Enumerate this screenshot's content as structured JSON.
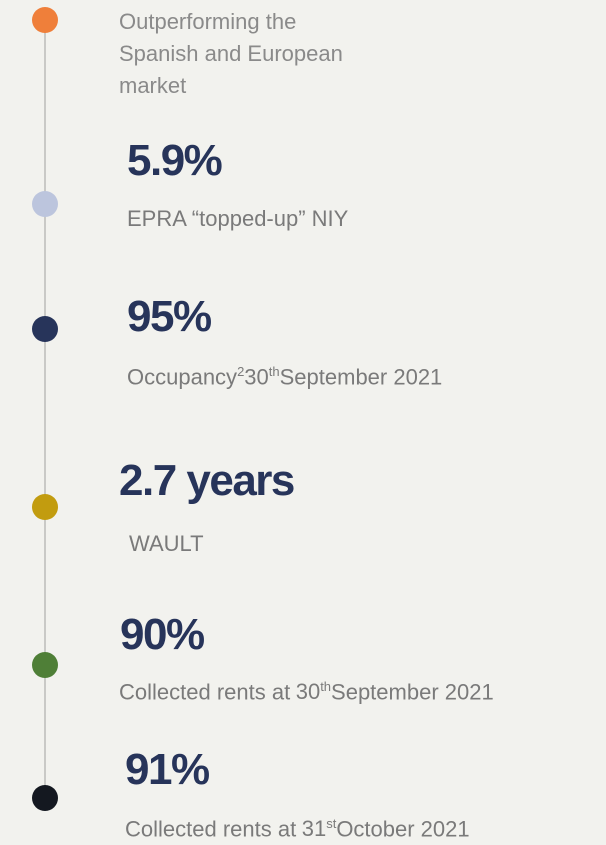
{
  "intro": {
    "lines": [
      "Outperforming the",
      "Spanish and European",
      "market"
    ],
    "dot_color": "#ef7f3a"
  },
  "items": [
    {
      "value": "5.9%",
      "dot_color": "#bcc5dd",
      "description": [
        {
          "text": "EPRA “topped-up” NIY"
        }
      ]
    },
    {
      "value": "95%",
      "dot_color": "#27345a",
      "description": [
        {
          "text": "Occupancy"
        },
        {
          "text": "2",
          "sup": true
        },
        {
          "text": "30"
        },
        {
          "text": "th",
          "sup": true
        },
        {
          "text": "September 2021"
        }
      ]
    },
    {
      "value": "2.7 years",
      "dot_color": "#c29c0f",
      "description": [
        {
          "text": "WAULT"
        }
      ]
    },
    {
      "value": "90%",
      "dot_color": "#4f7f37",
      "description": [
        {
          "text": "Collected rents at"
        },
        {
          "text": "30"
        },
        {
          "text": "th",
          "sup": true
        },
        {
          "text": "September 2021"
        }
      ]
    },
    {
      "value": "91%",
      "dot_color": "#141820",
      "description": [
        {
          "text": "Collected rents at"
        },
        {
          "text": "31"
        },
        {
          "text": "st",
          "sup": true
        },
        {
          "text": "October 2021"
        }
      ]
    }
  ]
}
